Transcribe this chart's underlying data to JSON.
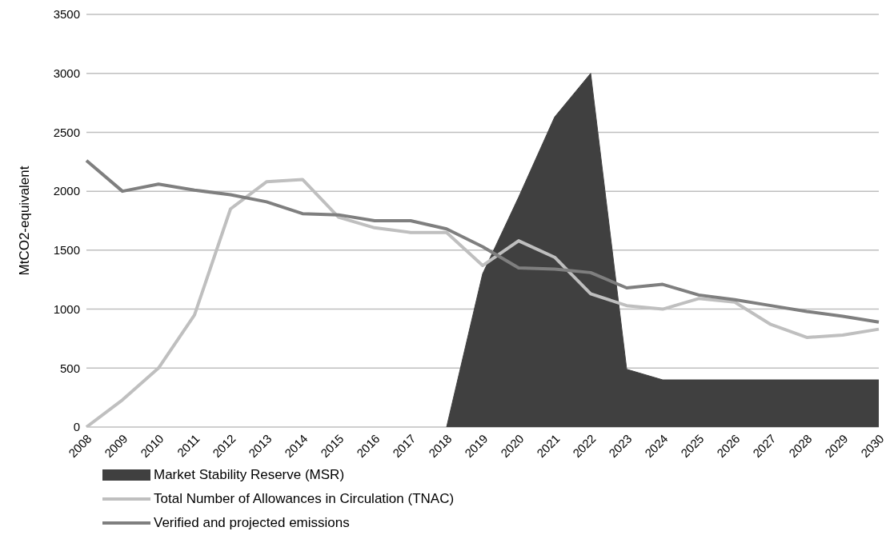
{
  "chart_data": {
    "type": "line",
    "ylabel": "MtCO2-equivalent",
    "categories": [
      "2008",
      "2009",
      "2010",
      "2011",
      "2012",
      "2013",
      "2014",
      "2015",
      "2016",
      "2017",
      "2018",
      "2019",
      "2020",
      "2021",
      "2022",
      "2023",
      "2024",
      "2025",
      "2026",
      "2027",
      "2028",
      "2029",
      "2030"
    ],
    "series": [
      {
        "name": "Market Stability Reserve (MSR)",
        "type": "area",
        "color": "#404040",
        "values": [
          null,
          null,
          null,
          null,
          null,
          null,
          null,
          null,
          null,
          null,
          0,
          1300,
          1950,
          2630,
          3000,
          490,
          400,
          400,
          400,
          400,
          400,
          400,
          400
        ]
      },
      {
        "name": "Total Number of Allowances in Circulation (TNAC)",
        "color": "#bfbfbf",
        "values": [
          0,
          230,
          500,
          950,
          1850,
          2080,
          2100,
          1780,
          1690,
          1650,
          1650,
          1370,
          1580,
          1440,
          1130,
          1030,
          1000,
          1090,
          1060,
          870,
          760,
          780,
          830
        ]
      },
      {
        "name": "Verified and projected emissions",
        "color": "#7f7f7f",
        "values": [
          2260,
          2000,
          2060,
          2010,
          1970,
          1910,
          1810,
          1800,
          1750,
          1750,
          1680,
          1530,
          1350,
          1340,
          1310,
          1180,
          1210,
          1120,
          1080,
          1030,
          980,
          940,
          890
        ]
      }
    ],
    "ylim": [
      0,
      3500
    ],
    "yticks": [
      0,
      500,
      1000,
      1500,
      2000,
      2500,
      3000,
      3500
    ],
    "grid": "y",
    "legend": "bottom left",
    "marker": "none",
    "line_style": "solid"
  }
}
